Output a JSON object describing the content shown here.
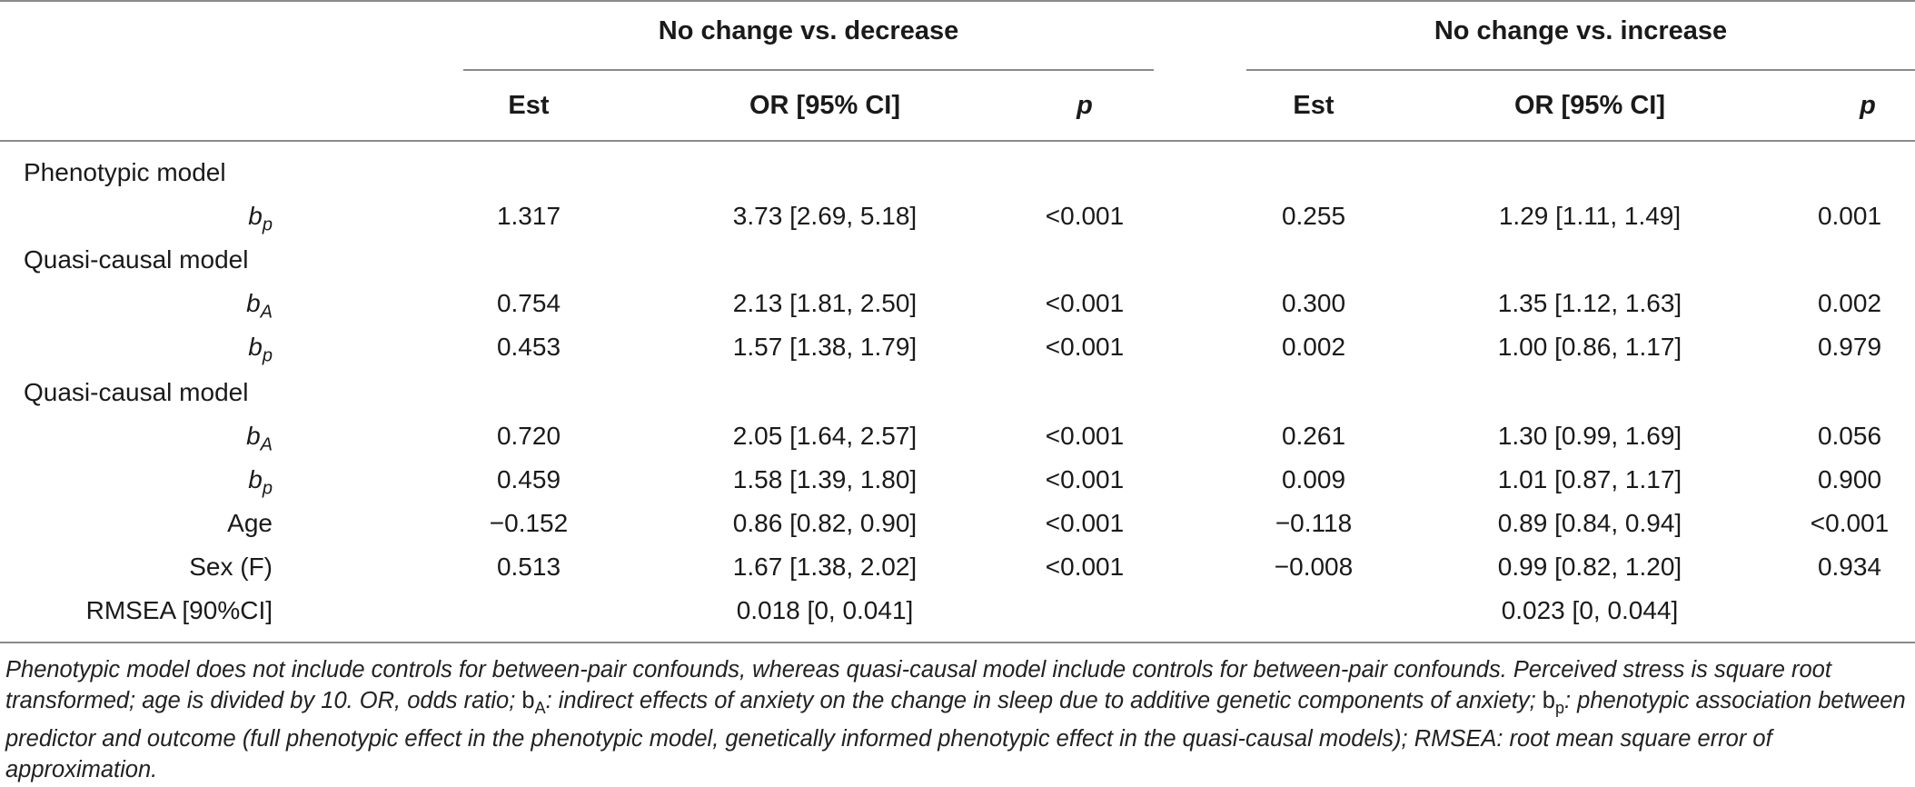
{
  "header": {
    "group_left": "No change vs. decrease",
    "group_right": "No change vs. increase",
    "columns": {
      "est_left": "Est",
      "or_left": "OR [95% CI]",
      "p_left": "p",
      "est_right": "Est",
      "or_right": "OR [95% CI]",
      "p_right": "p"
    }
  },
  "sections": {
    "phenotypic": "Phenotypic model",
    "quasi1": "Quasi-causal model",
    "quasi2": "Quasi-causal model"
  },
  "rows": {
    "r1": {
      "pred_base": "b",
      "pred_sub": "p",
      "est1": "1.317",
      "or1": "3.73 [2.69, 5.18]",
      "p1": "<0.001",
      "est2": "0.255",
      "or2": "1.29 [1.11, 1.49]",
      "p2": "0.001"
    },
    "r2": {
      "pred_base": "b",
      "pred_sub": "A",
      "est1": "0.754",
      "or1": "2.13 [1.81, 2.50]",
      "p1": "<0.001",
      "est2": "0.300",
      "or2": "1.35 [1.12, 1.63]",
      "p2": "0.002"
    },
    "r3": {
      "pred_base": "b",
      "pred_sub": "p",
      "est1": "0.453",
      "or1": "1.57 [1.38, 1.79]",
      "p1": "<0.001",
      "est2": "0.002",
      "or2": "1.00 [0.86, 1.17]",
      "p2": "0.979"
    },
    "r4": {
      "pred_base": "b",
      "pred_sub": "A",
      "est1": "0.720",
      "or1": "2.05 [1.64, 2.57]",
      "p1": "<0.001",
      "est2": "0.261",
      "or2": "1.30 [0.99, 1.69]",
      "p2": "0.056"
    },
    "r5": {
      "pred_base": "b",
      "pred_sub": "p",
      "est1": "0.459",
      "or1": "1.58 [1.39, 1.80]",
      "p1": "<0.001",
      "est2": "0.009",
      "or2": "1.01 [0.87, 1.17]",
      "p2": "0.900"
    },
    "r6": {
      "pred": "Age",
      "est1": "−0.152",
      "or1": "0.86 [0.82, 0.90]",
      "p1": "<0.001",
      "est2": "−0.118",
      "or2": "0.89 [0.84, 0.94]",
      "p2": "<0.001"
    },
    "r7": {
      "pred": "Sex (F)",
      "est1": "0.513",
      "or1": "1.67 [1.38, 2.02]",
      "p1": "<0.001",
      "est2": "−0.008",
      "or2": "0.99 [0.82, 1.20]",
      "p2": "0.934"
    },
    "r8": {
      "pred": "RMSEA [90%CI]",
      "or1": "0.018 [0, 0.041]",
      "or2": "0.023 [0, 0.044]"
    }
  },
  "footnote": {
    "t1": "Phenotypic model does not include controls for between-pair confounds, whereas quasi-causal model include controls for between-pair confounds. Perceived stress is square root transformed; age is divided by 10. OR, odds ratio; ",
    "bA_base": "b",
    "bA_sub": "A",
    "t2": ": indirect effects of anxiety on the change in sleep due to additive genetic components of anxiety; ",
    "bp_base": "b",
    "bp_sub": "p",
    "t3": ": phenotypic association between predictor and outcome (full phenotypic effect in the phenotypic model, genetically informed phenotypic effect in the quasi-causal models); RMSEA: root mean square error of approximation."
  }
}
